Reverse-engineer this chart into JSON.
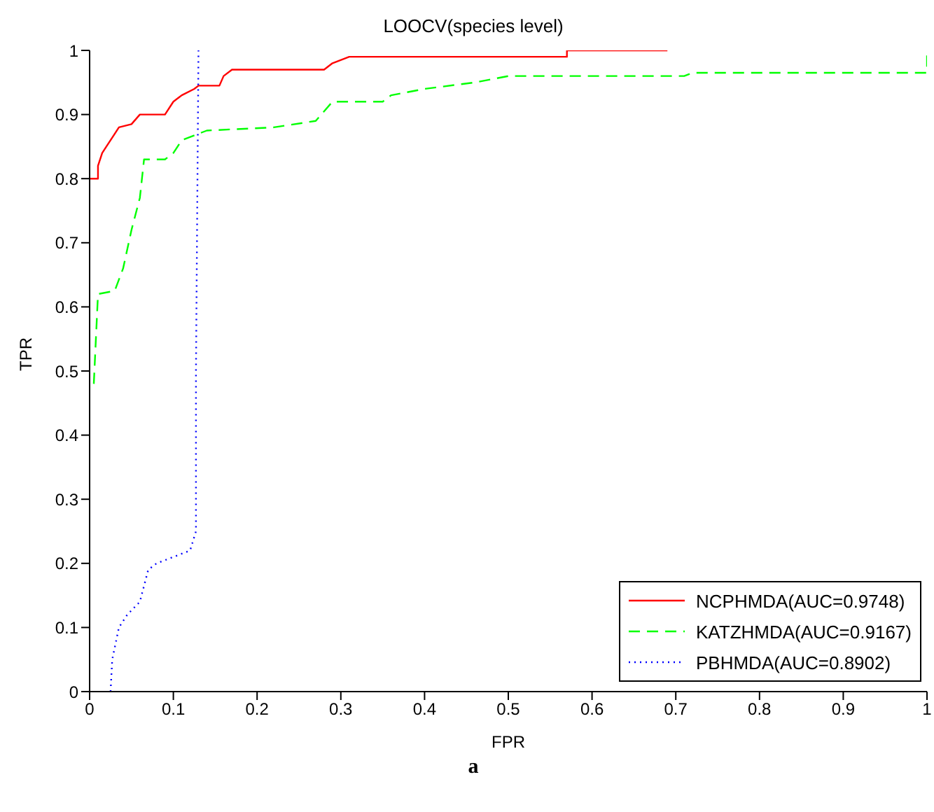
{
  "chart_data": {
    "type": "line",
    "title": "LOOCV(species level)",
    "xlabel": "FPR",
    "ylabel": "TPR",
    "annotations": [
      "a"
    ],
    "xlim": [
      0,
      1
    ],
    "ylim": [
      0,
      1
    ],
    "xticks": [
      0,
      0.1,
      0.2,
      0.3,
      0.4,
      0.5,
      0.6,
      0.7,
      0.8,
      0.9,
      1
    ],
    "yticks": [
      0,
      0.1,
      0.2,
      0.3,
      0.4,
      0.5,
      0.6,
      0.7,
      0.8,
      0.9,
      1
    ],
    "grid": false,
    "legend": "bottom right",
    "marker": "none",
    "series": [
      {
        "name": "NCPHMDA(AUC=0.9748)",
        "color": "#ff0000",
        "line_style": "solid",
        "x": [
          0,
          0.01,
          0.01,
          0.015,
          0.02,
          0.03,
          0.035,
          0.05,
          0.06,
          0.09,
          0.1,
          0.11,
          0.125,
          0.13,
          0.155,
          0.16,
          0.17,
          0.28,
          0.29,
          0.31,
          0.57,
          0.57,
          0.69
        ],
        "values": [
          0.8,
          0.8,
          0.82,
          0.84,
          0.85,
          0.87,
          0.88,
          0.885,
          0.9,
          0.9,
          0.92,
          0.93,
          0.94,
          0.945,
          0.945,
          0.96,
          0.97,
          0.97,
          0.98,
          0.99,
          0.99,
          1,
          1
        ]
      },
      {
        "name": "KATZHMDA(AUC=0.9167)",
        "color": "#00ff00",
        "line_style": "dashed",
        "x": [
          0.005,
          0.01,
          0.03,
          0.04,
          0.05,
          0.06,
          0.065,
          0.09,
          0.1,
          0.11,
          0.13,
          0.14,
          0.22,
          0.27,
          0.29,
          0.35,
          0.36,
          0.4,
          0.46,
          0.5,
          0.71,
          0.72,
          1,
          1
        ],
        "values": [
          0.48,
          0.62,
          0.625,
          0.66,
          0.72,
          0.77,
          0.83,
          0.83,
          0.84,
          0.86,
          0.87,
          0.875,
          0.88,
          0.89,
          0.92,
          0.92,
          0.93,
          0.94,
          0.95,
          0.96,
          0.96,
          0.965,
          0.965,
          1
        ]
      },
      {
        "name": "PBHMDA(AUC=0.8902)",
        "color": "#0000ff",
        "line_style": "dotted",
        "x": [
          0.025,
          0.027,
          0.035,
          0.045,
          0.06,
          0.07,
          0.08,
          0.1,
          0.12,
          0.127,
          0.127,
          0.13
        ],
        "values": [
          0,
          0.05,
          0.1,
          0.12,
          0.14,
          0.19,
          0.2,
          0.21,
          0.22,
          0.25,
          0.5,
          1
        ]
      }
    ]
  }
}
